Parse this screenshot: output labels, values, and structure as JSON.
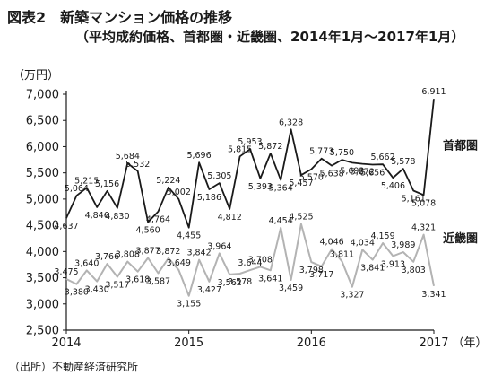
{
  "title_line1": "図表2　新築マンション価格の推移",
  "title_line2": "（平均成約価格、首都圏・近畿圏、2014年1月〜2017年1月）",
  "source_note": "（出所）不動産経済研究所",
  "chart_data": {
    "type": "line",
    "y_unit_label": "（万円）",
    "x_unit_label": "（年）",
    "ylim": [
      2500,
      7000
    ],
    "y_ticks": [
      "2,500",
      "3,000",
      "3,500",
      "4,000",
      "4,500",
      "5,000",
      "5,500",
      "6,000",
      "6,500",
      "7,000"
    ],
    "x_ticks": [
      "2014",
      "2015",
      "2016",
      "2017"
    ],
    "grid": false,
    "legend_placement": "right, next to series end",
    "series": [
      {
        "name": "首都圏",
        "color": "#1a1a1a",
        "values": [
          4637,
          5064,
          5215,
          4846,
          5156,
          4830,
          5684,
          5532,
          4560,
          4764,
          5224,
          5002,
          4455,
          5696,
          5186,
          5305,
          4812,
          5815,
          5953,
          5393,
          5872,
          5364,
          6328,
          5457,
          5570,
          5773,
          5638,
          5750,
          5692,
          5672,
          5656,
          5662,
          5406,
          5578,
          5161,
          5078,
          6911
        ],
        "labels": [
          "4,637",
          "5,064",
          "5,215",
          "4,846",
          "5,156",
          "4,830",
          "5,684",
          "5,532",
          "4,560",
          "4,764",
          "5,224",
          "5,002",
          "4,455",
          "5,696",
          "5,186",
          "5,305",
          "4,812",
          "5,815",
          "5,953",
          "5,393",
          "5,872",
          "5,364",
          "6,328",
          "5,457",
          "5,570",
          "5,773",
          "5,638",
          "5,750",
          "5,692",
          "5,672",
          "5,656",
          "5,662",
          "5,406",
          "5,578",
          "5,161",
          "5,078",
          "6,911"
        ]
      },
      {
        "name": "近畿圏",
        "color": "#b3b3b3",
        "values": [
          3475,
          3380,
          3640,
          3430,
          3766,
          3517,
          3808,
          3618,
          3877,
          3587,
          3872,
          3649,
          3155,
          3842,
          3427,
          3964,
          3562,
          3578,
          3644,
          3708,
          3641,
          4454,
          3459,
          4525,
          3798,
          3717,
          4046,
          3811,
          3327,
          4034,
          3841,
          4159,
          3913,
          3989,
          3803,
          4321,
          3341
        ],
        "labels": [
          "3,475",
          "3,380",
          "3,640",
          "3,430",
          "3,766",
          "3,517",
          "3,808",
          "3,618",
          "3,877",
          "3,587",
          "3,872",
          "3,649",
          "3,155",
          "3,842",
          "3,427",
          "3,964",
          "3,562",
          "3,578",
          "3,644",
          "3,708",
          "3,641",
          "4,454",
          "3,459",
          "4,525",
          "3,798",
          "3,717",
          "4,046",
          "3,811",
          "3,327",
          "4,034",
          "3,841",
          "4,159",
          "3,913",
          "3,989",
          "3,803",
          "4,321",
          "3,341"
        ]
      }
    ]
  }
}
